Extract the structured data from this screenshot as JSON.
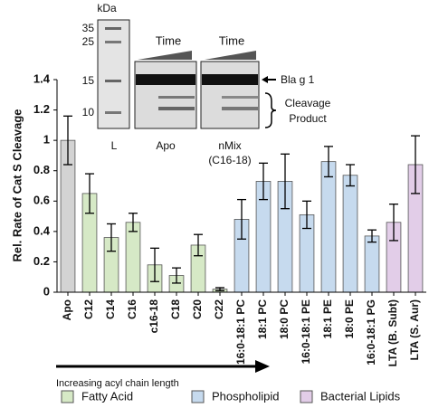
{
  "chart_data": {
    "type": "bar",
    "y_label": "Rel. Rate of Cat S Cleavage",
    "categories": [
      "Apo",
      "C12",
      "C14",
      "C16",
      "c16-18",
      "C18",
      "C20",
      "C22",
      "16:0-18:1 PC",
      "18:1 PC",
      "18:0 PC",
      "16:0-18:1 PE",
      "18:1 PE",
      "18:0 PE",
      "16:0-18:1 PG",
      "LTA (B. Subt)",
      "LTA (S. Aur)"
    ],
    "values": [
      1.0,
      0.65,
      0.36,
      0.46,
      0.18,
      0.11,
      0.31,
      0.02,
      0.48,
      0.73,
      0.73,
      0.51,
      0.86,
      0.77,
      0.37,
      0.46,
      0.84
    ],
    "errors": [
      0.16,
      0.13,
      0.09,
      0.06,
      0.11,
      0.05,
      0.07,
      0.01,
      0.13,
      0.12,
      0.18,
      0.09,
      0.1,
      0.07,
      0.04,
      0.12,
      0.19
    ],
    "colors": [
      "#d3d3d3",
      "#d6e9c6",
      "#d6e9c6",
      "#d6e9c6",
      "#d6e9c6",
      "#d6e9c6",
      "#d6e9c6",
      "#d6e9c6",
      "#c6daee",
      "#c6daee",
      "#c6daee",
      "#c6daee",
      "#c6daee",
      "#c6daee",
      "#c6daee",
      "#e2cde8",
      "#e2cde8"
    ],
    "legend": [
      {
        "name": "Fatty Acid",
        "color": "#d6e9c6"
      },
      {
        "name": "Phospholipid",
        "color": "#c6daee"
      },
      {
        "name": "Bacterial Lipids",
        "color": "#e2cde8"
      }
    ],
    "ylim": [
      0,
      1.4
    ],
    "yticks": [
      0,
      0.2,
      0.4,
      0.6,
      0.8,
      1,
      1.2,
      1.4
    ],
    "arrow_label": "Increasing acyl chain length",
    "inset": {
      "unit": "kDa",
      "markers": [
        35,
        25,
        15,
        10
      ],
      "ladder_label": "L",
      "time": [
        "Time",
        "Time"
      ],
      "panels": [
        "Apo",
        "nMix",
        "(C16-18)"
      ],
      "band": "Bla g 1",
      "product": [
        "Cleavage",
        "Product"
      ]
    }
  }
}
